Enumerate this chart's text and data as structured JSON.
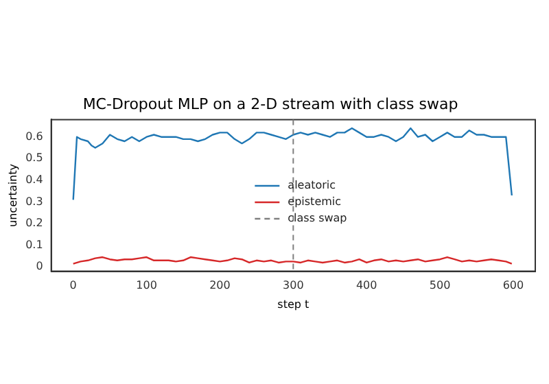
{
  "chart_data": {
    "type": "line",
    "title": "MC-Dropout MLP on a 2-D stream with class swap",
    "xlabel": "step t",
    "ylabel": "uncertainty",
    "xlim": [
      -30,
      630
    ],
    "xticks": [
      0,
      100,
      200,
      300,
      400,
      500,
      600
    ],
    "ylim": [
      -0.02,
      0.68
    ],
    "yticks": [
      0,
      0.1,
      0.2,
      0.3,
      0.4,
      0.5,
      0.6
    ],
    "grid": false,
    "legend": "center",
    "marker": "none",
    "line_style": "solid",
    "series": [
      {
        "name": "aleatoric",
        "color": "#1f77b4",
        "x": [
          0,
          5,
          10,
          20,
          25,
          30,
          40,
          50,
          60,
          70,
          80,
          90,
          100,
          110,
          120,
          130,
          140,
          150,
          160,
          170,
          180,
          190,
          200,
          210,
          220,
          230,
          240,
          250,
          260,
          270,
          280,
          290,
          300,
          310,
          320,
          330,
          340,
          350,
          360,
          370,
          380,
          390,
          400,
          410,
          420,
          430,
          440,
          450,
          460,
          470,
          480,
          490,
          500,
          510,
          520,
          530,
          540,
          550,
          560,
          570,
          580,
          590,
          598
        ],
        "values": [
          0.31,
          0.6,
          0.59,
          0.58,
          0.56,
          0.55,
          0.57,
          0.61,
          0.59,
          0.58,
          0.6,
          0.58,
          0.6,
          0.61,
          0.6,
          0.6,
          0.6,
          0.59,
          0.59,
          0.58,
          0.59,
          0.61,
          0.62,
          0.62,
          0.59,
          0.57,
          0.59,
          0.62,
          0.62,
          0.61,
          0.6,
          0.59,
          0.61,
          0.62,
          0.61,
          0.62,
          0.61,
          0.6,
          0.62,
          0.62,
          0.64,
          0.62,
          0.6,
          0.6,
          0.61,
          0.6,
          0.58,
          0.6,
          0.64,
          0.6,
          0.61,
          0.58,
          0.6,
          0.62,
          0.6,
          0.6,
          0.63,
          0.61,
          0.61,
          0.6,
          0.6,
          0.6,
          0.33
        ]
      },
      {
        "name": "epistemic",
        "color": "#d62728",
        "x": [
          0,
          10,
          20,
          30,
          40,
          50,
          60,
          70,
          80,
          90,
          100,
          110,
          120,
          130,
          140,
          150,
          160,
          170,
          180,
          190,
          200,
          210,
          220,
          230,
          240,
          250,
          260,
          270,
          280,
          290,
          300,
          310,
          320,
          330,
          340,
          350,
          360,
          370,
          380,
          390,
          400,
          410,
          420,
          430,
          440,
          450,
          460,
          470,
          480,
          490,
          500,
          510,
          520,
          530,
          540,
          550,
          560,
          570,
          580,
          590,
          598
        ],
        "values": [
          0.015,
          0.025,
          0.03,
          0.04,
          0.045,
          0.035,
          0.03,
          0.035,
          0.035,
          0.04,
          0.045,
          0.03,
          0.03,
          0.03,
          0.025,
          0.03,
          0.045,
          0.04,
          0.035,
          0.03,
          0.025,
          0.03,
          0.04,
          0.035,
          0.02,
          0.03,
          0.025,
          0.03,
          0.02,
          0.025,
          0.025,
          0.02,
          0.03,
          0.025,
          0.02,
          0.025,
          0.03,
          0.02,
          0.025,
          0.035,
          0.02,
          0.03,
          0.035,
          0.025,
          0.03,
          0.025,
          0.03,
          0.035,
          0.025,
          0.03,
          0.035,
          0.045,
          0.035,
          0.025,
          0.03,
          0.025,
          0.03,
          0.035,
          0.03,
          0.025,
          0.015
        ]
      }
    ],
    "ref_lines": [
      {
        "axis": "x",
        "value": 300,
        "label": "class swap",
        "color": "#7f7f7f",
        "line_style": "dashed"
      }
    ]
  }
}
